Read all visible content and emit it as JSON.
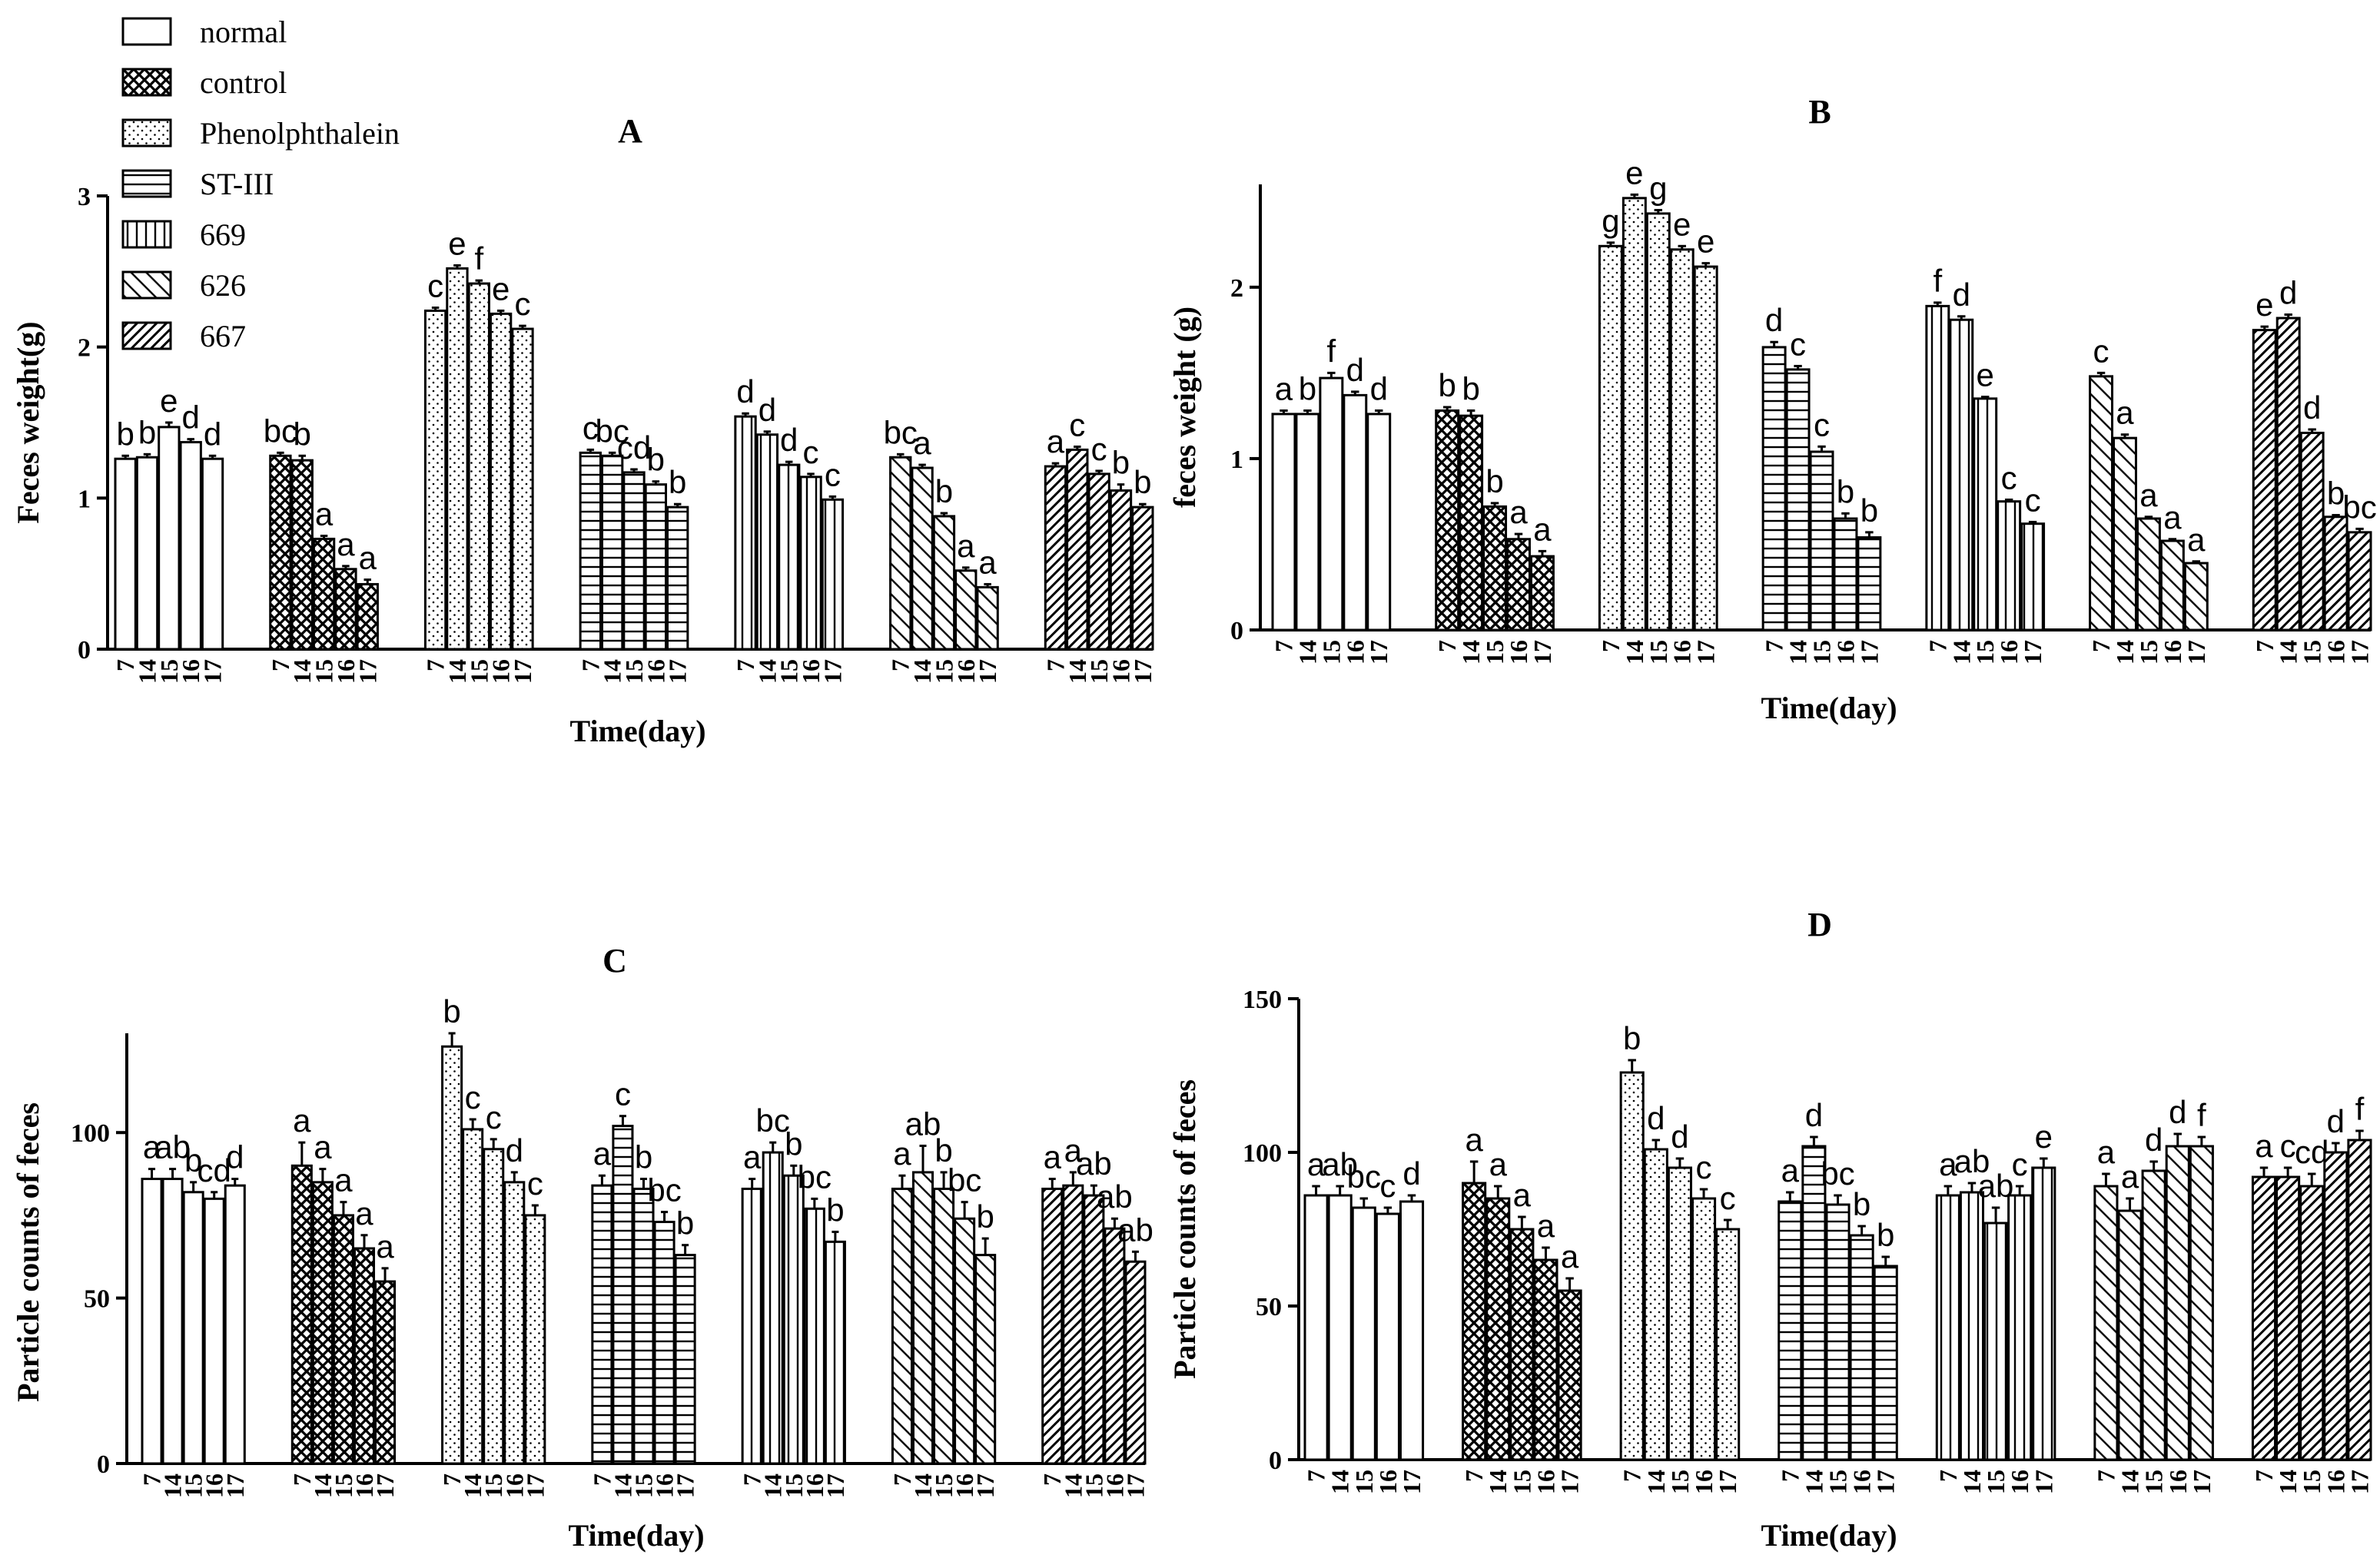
{
  "legend": [
    {
      "name": "normal",
      "pattern": "white"
    },
    {
      "name": "control",
      "pattern": "cross"
    },
    {
      "name": "Phenolphthalein",
      "pattern": "dots"
    },
    {
      "name": "ST-III",
      "pattern": "hlines"
    },
    {
      "name": "669",
      "pattern": "vlines"
    },
    {
      "name": "626",
      "pattern": "diag"
    },
    {
      "name": "667",
      "pattern": "diagdense"
    }
  ],
  "chart_data": [
    {
      "panel": "A",
      "type": "bar",
      "title": "A",
      "xlabel": "Time(day)",
      "ylabel": "Feces weight(g)",
      "ylim": [
        0,
        3
      ],
      "yticks": [
        0,
        1,
        2,
        3
      ],
      "days": [
        "7",
        "14",
        "15",
        "16",
        "17"
      ],
      "series": [
        {
          "name": "normal",
          "values": [
            1.26,
            1.27,
            1.47,
            1.37,
            1.26
          ],
          "errors": [
            0.02,
            0.02,
            0.03,
            0.02,
            0.02
          ],
          "labels": [
            "b",
            "b",
            "e",
            "d",
            "d"
          ]
        },
        {
          "name": "control",
          "values": [
            1.28,
            1.25,
            0.73,
            0.53,
            0.43
          ],
          "errors": [
            0.02,
            0.03,
            0.02,
            0.02,
            0.03
          ],
          "labels": [
            "bc",
            "b",
            "a",
            "a",
            "a"
          ]
        },
        {
          "name": "Phenolphthalein",
          "values": [
            2.24,
            2.52,
            2.42,
            2.22,
            2.12
          ],
          "errors": [
            0.02,
            0.02,
            0.02,
            0.02,
            0.02
          ],
          "labels": [
            "c",
            "e",
            "f",
            "e",
            "c"
          ]
        },
        {
          "name": "ST-III",
          "values": [
            1.3,
            1.28,
            1.17,
            1.09,
            0.94
          ],
          "errors": [
            0.02,
            0.02,
            0.02,
            0.02,
            0.02
          ],
          "labels": [
            "c",
            "bc",
            "cd",
            "b",
            "b"
          ]
        },
        {
          "name": "669",
          "values": [
            1.54,
            1.42,
            1.22,
            1.14,
            0.99
          ],
          "errors": [
            0.02,
            0.02,
            0.02,
            0.02,
            0.02
          ],
          "labels": [
            "d",
            "d",
            "d",
            "c",
            "c"
          ]
        },
        {
          "name": "626",
          "values": [
            1.27,
            1.2,
            0.88,
            0.52,
            0.41
          ],
          "errors": [
            0.02,
            0.02,
            0.02,
            0.02,
            0.02
          ],
          "labels": [
            "bc",
            "a",
            "b",
            "a",
            "a"
          ]
        },
        {
          "name": "667",
          "values": [
            1.21,
            1.32,
            1.16,
            1.05,
            0.94
          ],
          "errors": [
            0.02,
            0.02,
            0.02,
            0.04,
            0.02
          ],
          "labels": [
            "a",
            "c",
            "c",
            "b",
            "b"
          ]
        }
      ]
    },
    {
      "panel": "B",
      "type": "bar",
      "title": "B",
      "xlabel": "Time(day)",
      "ylabel": "feces weight (g)",
      "ylim": [
        0,
        2.6
      ],
      "yticks": [
        0,
        1,
        2
      ],
      "days": [
        "7",
        "14",
        "15",
        "16",
        "17"
      ],
      "series": [
        {
          "name": "normal",
          "values": [
            1.26,
            1.26,
            1.47,
            1.37,
            1.26
          ],
          "errors": [
            0.02,
            0.02,
            0.03,
            0.02,
            0.02
          ],
          "labels": [
            "a",
            "b",
            "f",
            "d",
            "d"
          ]
        },
        {
          "name": "control",
          "values": [
            1.28,
            1.25,
            0.72,
            0.53,
            0.43
          ],
          "errors": [
            0.02,
            0.03,
            0.02,
            0.03,
            0.03
          ],
          "labels": [
            "b",
            "b",
            "b",
            "a",
            "a"
          ]
        },
        {
          "name": "Phenolphthalein",
          "values": [
            2.24,
            2.52,
            2.43,
            2.22,
            2.12
          ],
          "errors": [
            0.02,
            0.02,
            0.02,
            0.02,
            0.02
          ],
          "labels": [
            "g",
            "e",
            "g",
            "e",
            "e"
          ]
        },
        {
          "name": "ST-III",
          "values": [
            1.65,
            1.52,
            1.04,
            0.65,
            0.54
          ],
          "errors": [
            0.03,
            0.02,
            0.03,
            0.03,
            0.03
          ],
          "labels": [
            "d",
            "c",
            "c",
            "b",
            "b"
          ]
        },
        {
          "name": "669",
          "values": [
            1.89,
            1.81,
            1.35,
            0.75,
            0.62
          ],
          "errors": [
            0.02,
            0.02,
            0.01,
            0.01,
            0.01
          ],
          "labels": [
            "f",
            "d",
            "e",
            "c",
            "c"
          ]
        },
        {
          "name": "626",
          "values": [
            1.48,
            1.12,
            0.65,
            0.52,
            0.39
          ],
          "errors": [
            0.02,
            0.02,
            0.01,
            0.01,
            0.01
          ],
          "labels": [
            "c",
            "a",
            "a",
            "a",
            "a"
          ]
        },
        {
          "name": "667",
          "values": [
            1.75,
            1.82,
            1.15,
            0.66,
            0.57
          ],
          "errors": [
            0.02,
            0.02,
            0.02,
            0.01,
            0.02
          ],
          "labels": [
            "e",
            "d",
            "d",
            "b",
            "bc"
          ]
        }
      ]
    },
    {
      "panel": "C",
      "type": "bar",
      "title": "C",
      "xlabel": "Time(day)",
      "ylabel": "Particle counts of feces",
      "ylim": [
        0,
        130
      ],
      "yticks": [
        0,
        50,
        100
      ],
      "days": [
        "7",
        "14",
        "15",
        "16",
        "17"
      ],
      "series": [
        {
          "name": "normal",
          "values": [
            86,
            86,
            82,
            80,
            84
          ],
          "errors": [
            3,
            3,
            3,
            2,
            2
          ],
          "labels": [
            "a",
            "ab",
            "b",
            "cd",
            "d"
          ]
        },
        {
          "name": "control",
          "values": [
            90,
            85,
            75,
            65,
            55
          ],
          "errors": [
            7,
            4,
            4,
            4,
            4
          ],
          "labels": [
            "a",
            "a",
            "a",
            "a",
            "a"
          ]
        },
        {
          "name": "Phenolphthalein",
          "values": [
            126,
            101,
            95,
            85,
            75
          ],
          "errors": [
            4,
            3,
            3,
            3,
            3
          ],
          "labels": [
            "b",
            "c",
            "c",
            "d",
            "c"
          ]
        },
        {
          "name": "ST-III",
          "values": [
            84,
            102,
            83,
            73,
            63
          ],
          "errors": [
            3,
            3,
            3,
            3,
            3
          ],
          "labels": [
            "a",
            "c",
            "b",
            "bc",
            "b"
          ]
        },
        {
          "name": "669",
          "values": [
            83,
            94,
            87,
            77,
            67
          ],
          "errors": [
            3,
            3,
            3,
            3,
            3
          ],
          "labels": [
            "a",
            "bc",
            "b",
            "bc",
            "b"
          ]
        },
        {
          "name": "626",
          "values": [
            83,
            88,
            83,
            74,
            63
          ],
          "errors": [
            4,
            8,
            5,
            5,
            5
          ],
          "labels": [
            "a",
            "ab",
            "b",
            "bc",
            "b"
          ]
        },
        {
          "name": "667",
          "values": [
            83,
            84,
            81,
            71,
            61
          ],
          "errors": [
            3,
            4,
            3,
            3,
            3
          ],
          "labels": [
            "a",
            "a",
            "ab",
            "ab",
            "ab"
          ]
        }
      ]
    },
    {
      "panel": "D",
      "type": "bar",
      "title": "D",
      "xlabel": "Time(day)",
      "ylabel": "Particle counts of feces",
      "ylim": [
        0,
        150
      ],
      "yticks": [
        0,
        50,
        100,
        150
      ],
      "days": [
        "7",
        "14",
        "15",
        "16",
        "17"
      ],
      "series": [
        {
          "name": "normal",
          "values": [
            86,
            86,
            82,
            80,
            84
          ],
          "errors": [
            3,
            3,
            3,
            2,
            2
          ],
          "labels": [
            "a",
            "ab",
            "bc",
            "c",
            "d"
          ]
        },
        {
          "name": "control",
          "values": [
            90,
            85,
            75,
            65,
            55
          ],
          "errors": [
            7,
            4,
            4,
            4,
            4
          ],
          "labels": [
            "a",
            "a",
            "a",
            "a",
            "a"
          ]
        },
        {
          "name": "Phenolphthalein",
          "values": [
            126,
            101,
            95,
            85,
            75
          ],
          "errors": [
            4,
            3,
            3,
            3,
            3
          ],
          "labels": [
            "b",
            "d",
            "d",
            "c",
            "c"
          ]
        },
        {
          "name": "ST-III",
          "values": [
            84,
            102,
            83,
            73,
            63
          ],
          "errors": [
            3,
            3,
            3,
            3,
            3
          ],
          "labels": [
            "a",
            "d",
            "bc",
            "b",
            "b"
          ]
        },
        {
          "name": "669",
          "values": [
            86,
            87,
            77,
            86,
            95
          ],
          "errors": [
            3,
            3,
            5,
            3,
            3
          ],
          "labels": [
            "a",
            "ab",
            "ab",
            "c",
            "e"
          ]
        },
        {
          "name": "626",
          "values": [
            89,
            81,
            94,
            102,
            102
          ],
          "errors": [
            4,
            4,
            3,
            4,
            3
          ],
          "labels": [
            "a",
            "a",
            "d",
            "d",
            "f"
          ]
        },
        {
          "name": "667",
          "values": [
            92,
            92,
            89,
            100,
            104
          ],
          "errors": [
            3,
            3,
            4,
            3,
            3
          ],
          "labels": [
            "a",
            "c",
            "cd",
            "d",
            "f"
          ]
        }
      ]
    }
  ]
}
